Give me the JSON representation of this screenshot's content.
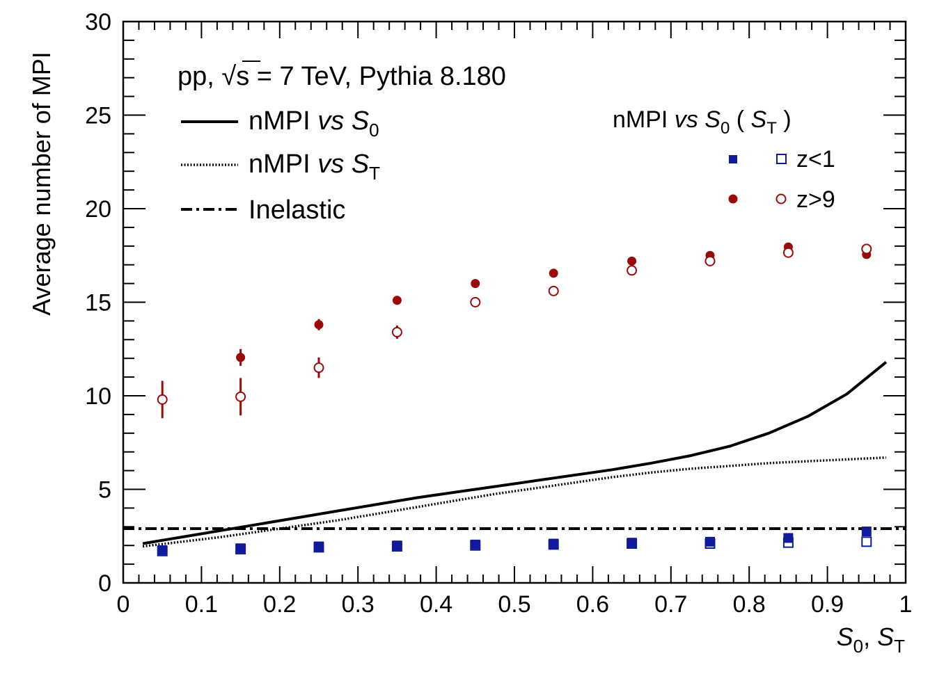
{
  "chart_data": {
    "type": "scatter",
    "xlabel": {
      "main_1": "S",
      "sub_1": "0",
      "sep": ", ",
      "main_2": "S",
      "sub_2": "T"
    },
    "ylabel": "Average number of MPI",
    "xlim": [
      0,
      1
    ],
    "ylim": [
      0,
      30
    ],
    "xticks": [
      "0",
      "0.1",
      "0.2",
      "0.3",
      "0.4",
      "0.5",
      "0.6",
      "0.7",
      "0.8",
      "0.9",
      "1"
    ],
    "yticks": [
      "0",
      "5",
      "10",
      "15",
      "20",
      "25",
      "30"
    ],
    "title": {
      "pre": "pp, ",
      "sqrt": "√",
      "s": "s",
      "post": " = 7 TeV, Pythia 8.180"
    },
    "legend_left": [
      {
        "style": "solid",
        "text": "nMPI ",
        "vs": "vs",
        "sym": "S",
        "sub": "0"
      },
      {
        "style": "dotted",
        "text": "nMPI ",
        "vs": "vs",
        "sym": "S",
        "sub": "T"
      },
      {
        "style": "dashdot",
        "text": "Inelastic",
        "vs": "",
        "sym": "",
        "sub": ""
      }
    ],
    "legend_right": {
      "header": {
        "text": "nMPI ",
        "vs": "vs",
        "sym": "S",
        "sub": "0",
        "paren_open": "(",
        "sym2": "S",
        "sub2": "T",
        "paren_close": ")"
      },
      "entries": [
        {
          "label": "z<1",
          "marker": "square",
          "color": "#0f1b9b"
        },
        {
          "label": "z>9",
          "marker": "circle",
          "color": "#9b0a0a"
        }
      ]
    },
    "series": [
      {
        "name": "nMPI vs S0",
        "kind": "line",
        "style": "solid",
        "color": "#000000",
        "x": [
          0.025,
          0.075,
          0.125,
          0.175,
          0.225,
          0.275,
          0.325,
          0.375,
          0.425,
          0.475,
          0.525,
          0.575,
          0.625,
          0.675,
          0.725,
          0.775,
          0.825,
          0.875,
          0.925,
          0.975
        ],
        "y": [
          2.1,
          2.45,
          2.8,
          3.15,
          3.5,
          3.85,
          4.2,
          4.55,
          4.85,
          5.15,
          5.45,
          5.75,
          6.05,
          6.4,
          6.8,
          7.3,
          8.0,
          8.9,
          10.1,
          11.8
        ]
      },
      {
        "name": "nMPI vs ST",
        "kind": "line",
        "style": "dotted",
        "color": "#000000",
        "x": [
          0.025,
          0.075,
          0.125,
          0.175,
          0.225,
          0.275,
          0.325,
          0.375,
          0.425,
          0.475,
          0.525,
          0.575,
          0.625,
          0.675,
          0.725,
          0.775,
          0.825,
          0.875,
          0.925,
          0.975
        ],
        "y": [
          1.95,
          2.2,
          2.45,
          2.75,
          3.05,
          3.35,
          3.7,
          4.05,
          4.4,
          4.75,
          5.05,
          5.35,
          5.65,
          5.9,
          6.1,
          6.25,
          6.4,
          6.5,
          6.6,
          6.7
        ]
      },
      {
        "name": "Inelastic",
        "kind": "hline",
        "style": "dashdot",
        "color": "#000000",
        "y": 2.9
      },
      {
        "name": "z<1 vs S0",
        "kind": "points",
        "marker": "square",
        "filled": true,
        "color": "#0f1b9b",
        "x": [
          0.05,
          0.15,
          0.25,
          0.35,
          0.45,
          0.55,
          0.65,
          0.75,
          0.85,
          0.95
        ],
        "y": [
          1.75,
          1.85,
          1.95,
          2.0,
          2.05,
          2.1,
          2.15,
          2.2,
          2.4,
          2.75
        ],
        "err": [
          0.05,
          0.05,
          0.05,
          0.05,
          0.05,
          0.05,
          0.05,
          0.05,
          0.08,
          0.1
        ]
      },
      {
        "name": "z<1 vs ST",
        "kind": "points",
        "marker": "square",
        "filled": false,
        "color": "#0f1b9b",
        "x": [
          0.05,
          0.15,
          0.25,
          0.35,
          0.45,
          0.55,
          0.65,
          0.75,
          0.85,
          0.95
        ],
        "y": [
          1.7,
          1.8,
          1.9,
          1.95,
          2.0,
          2.05,
          2.1,
          2.1,
          2.15,
          2.2
        ],
        "err": [
          0.05,
          0.05,
          0.05,
          0.05,
          0.05,
          0.05,
          0.05,
          0.05,
          0.05,
          0.05
        ]
      },
      {
        "name": "z>9 vs S0",
        "kind": "points",
        "marker": "circle",
        "filled": true,
        "color": "#9b0a0a",
        "x": [
          0.05,
          0.15,
          0.25,
          0.35,
          0.45,
          0.55,
          0.65,
          0.75,
          0.85,
          0.95
        ],
        "y": [
          9.8,
          12.05,
          13.8,
          15.1,
          16.0,
          16.55,
          17.2,
          17.5,
          17.95,
          17.55
        ],
        "err": [
          1.0,
          0.45,
          0.3,
          0.15,
          0.12,
          0.1,
          0.1,
          0.1,
          0.1,
          0.1
        ]
      },
      {
        "name": "z>9 vs ST",
        "kind": "points",
        "marker": "circle",
        "filled": false,
        "color": "#9b0a0a",
        "x": [
          0.05,
          0.15,
          0.25,
          0.35,
          0.45,
          0.55,
          0.65,
          0.75,
          0.85,
          0.95
        ],
        "y": [
          9.8,
          9.95,
          11.5,
          13.4,
          15.0,
          15.6,
          16.7,
          17.2,
          17.65,
          17.85
        ],
        "err": [
          0.05,
          1.0,
          0.55,
          0.35,
          0.15,
          0.12,
          0.1,
          0.1,
          0.1,
          0.1
        ]
      }
    ]
  }
}
